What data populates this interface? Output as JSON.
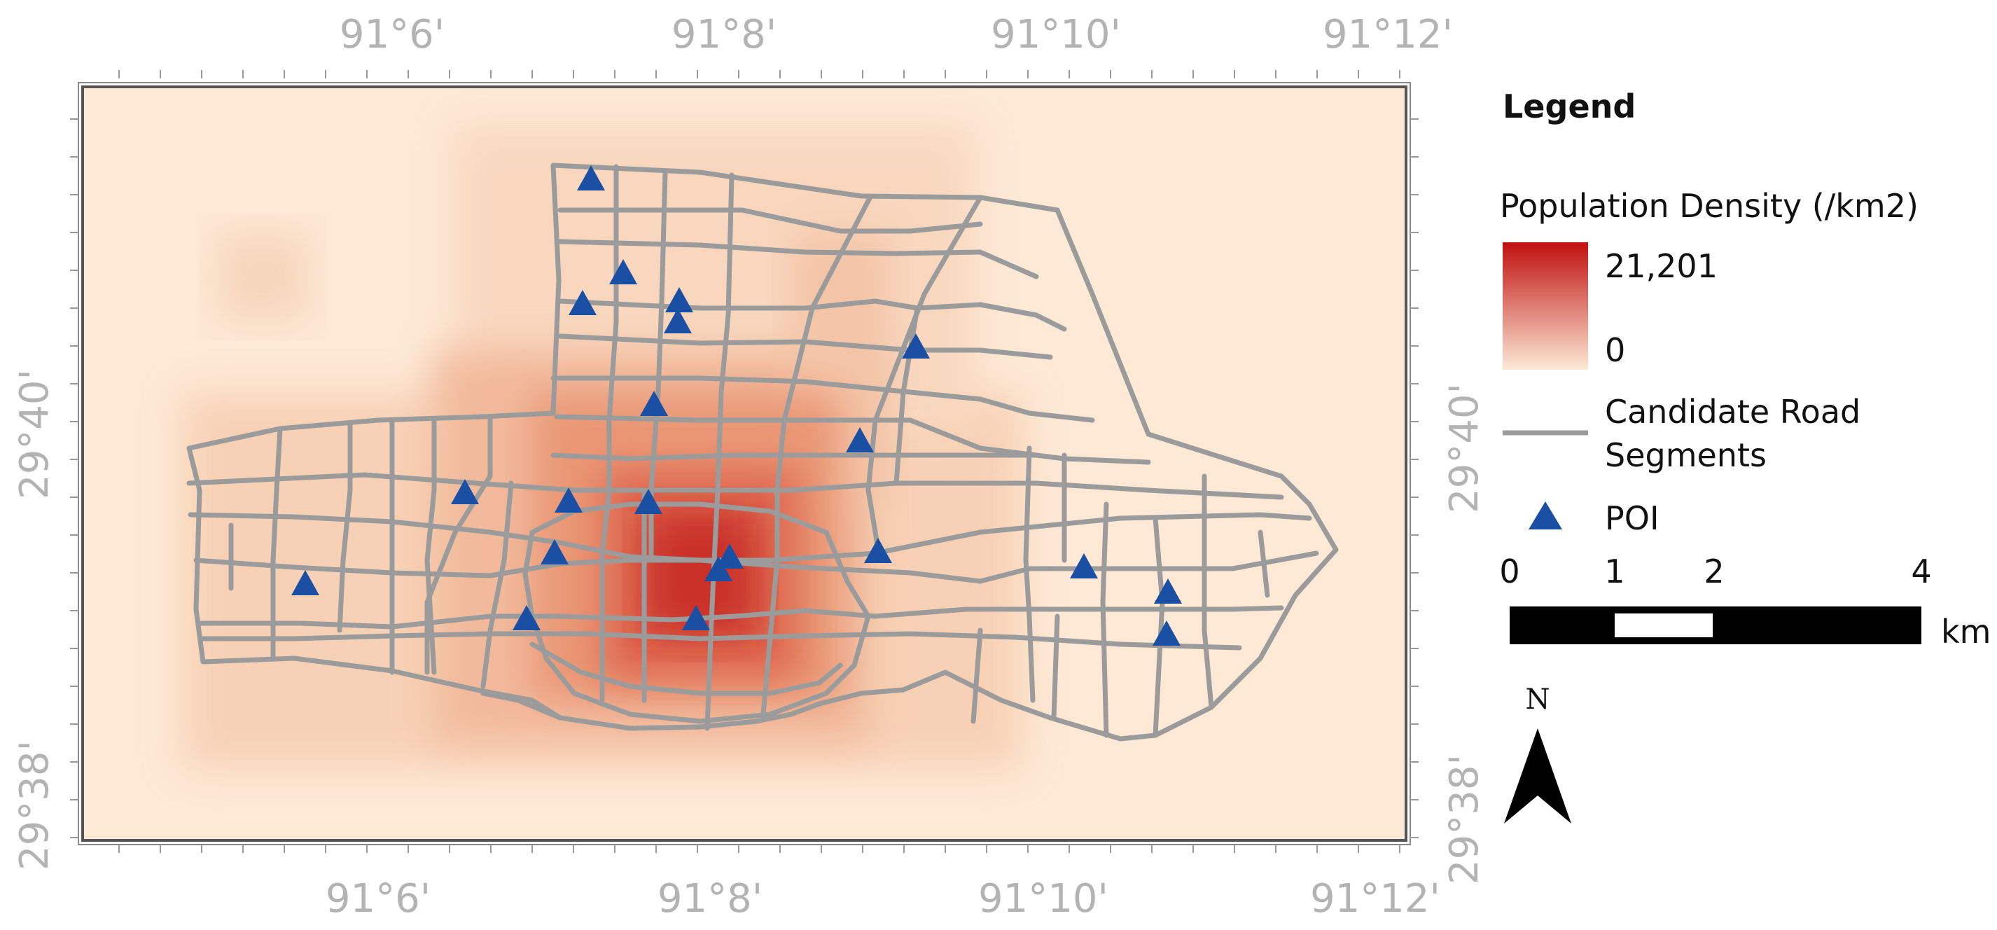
{
  "map": {
    "background_color": "#fde9d6",
    "road_color": "#9b9b9b",
    "poi_color": "#1b4fa3",
    "top_labels": [
      "91°6'",
      "91°8'",
      "91°10'",
      "91°12'"
    ],
    "bottom_labels": [
      "91°6'",
      "91°8'",
      "91°10'",
      "91°12'"
    ],
    "left_labels": [
      "29°40'",
      "29°38'"
    ],
    "right_labels": [
      "29°40'",
      "29°38'"
    ]
  },
  "legend": {
    "title": "Legend",
    "density_title": "Population Density (/km2)",
    "density_max": "21,201",
    "density_min": "0",
    "ramp_colors": [
      "#c0100e",
      "#fce9d5"
    ],
    "roads_label_line1": "Candidate Road",
    "roads_label_line2": "Segments",
    "poi_label": "POI"
  },
  "scale_bar": {
    "ticks": [
      "0",
      "1",
      "2",
      "4"
    ],
    "unit": "km"
  },
  "north_arrow": {
    "label": "N",
    "icon": "north-arrow-icon"
  }
}
